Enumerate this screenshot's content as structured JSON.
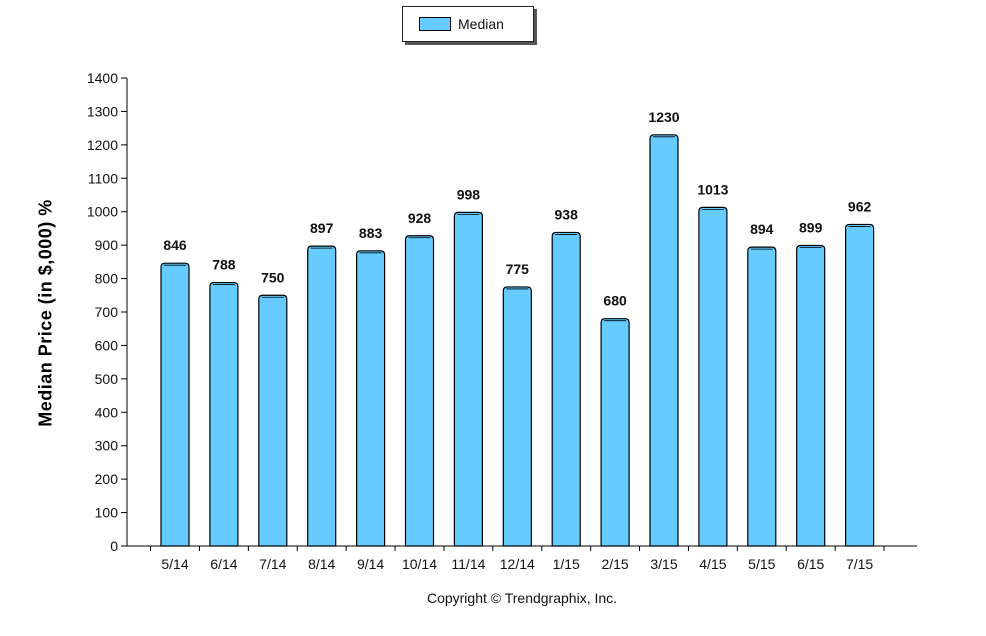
{
  "chart_data": {
    "type": "bar",
    "categories": [
      "5/14",
      "6/14",
      "7/14",
      "8/14",
      "9/14",
      "10/14",
      "11/14",
      "12/14",
      "1/15",
      "2/15",
      "3/15",
      "4/15",
      "5/15",
      "6/15",
      "7/15"
    ],
    "series": [
      {
        "name": "Median",
        "values": [
          846,
          788,
          750,
          897,
          883,
          928,
          998,
          775,
          938,
          680,
          1230,
          1013,
          894,
          899,
          962
        ]
      }
    ],
    "title": "",
    "xlabel": "",
    "ylabel": "Median Price (in $,000) %",
    "ylim": [
      0,
      1400
    ],
    "yticks": [
      0,
      100,
      200,
      300,
      400,
      500,
      600,
      700,
      800,
      900,
      1000,
      1100,
      1200,
      1300,
      1400
    ],
    "grid": false,
    "legend_position": "top-center",
    "data_labels": true,
    "colors": {
      "bar": "#66ccff",
      "bar_edge": "#000000"
    }
  },
  "footer": {
    "copyright": "Copyright © Trendgraphix, Inc."
  }
}
